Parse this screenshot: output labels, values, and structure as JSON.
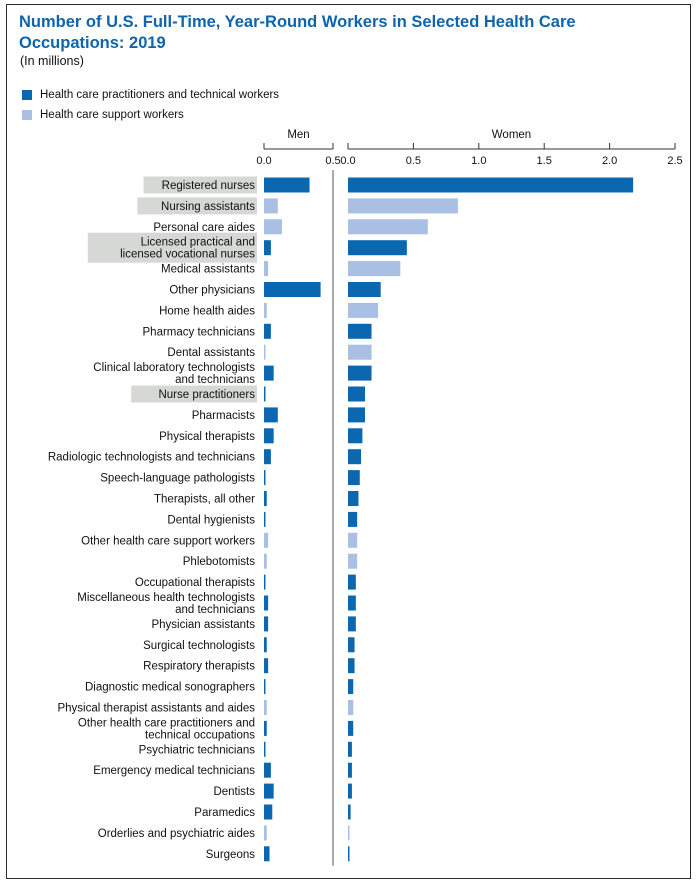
{
  "colors": {
    "practitioners": "#0c67b1",
    "support": "#a9bfe3",
    "title": "#0e64ad",
    "highlight": "#d6d8d5"
  },
  "chart_data": {
    "type": "bar",
    "title": "Number of U.S. Full-Time, Year-Round Workers in Selected Health Care Occupations: 2019",
    "subtitle": "(In millions)",
    "legend": [
      {
        "key": "practitioners",
        "label": "Health care practitioners and technical workers"
      },
      {
        "key": "support",
        "label": "Health care support workers"
      }
    ],
    "legend_position": "top-left",
    "panels": [
      {
        "key": "men",
        "title": "Men",
        "xlim": [
          0,
          0.5
        ],
        "ticks": [
          0.0,
          0.5
        ],
        "tick_labels": [
          "0.0",
          "0.5"
        ]
      },
      {
        "key": "women",
        "title": "Women",
        "xlim": [
          0,
          2.5
        ],
        "ticks": [
          0.0,
          0.5,
          1.0,
          1.5,
          2.0,
          2.5
        ],
        "tick_labels": [
          "0.0",
          "0.5",
          "1.0",
          "1.5",
          "2.0",
          "2.5"
        ]
      }
    ],
    "grid": false,
    "categories": [
      {
        "label": [
          "Registered nurses"
        ],
        "group": "practitioners",
        "highlight": true,
        "men": 0.33,
        "women": 2.18
      },
      {
        "label": [
          "Nursing assistants"
        ],
        "group": "support",
        "highlight": true,
        "men": 0.1,
        "women": 0.84
      },
      {
        "label": [
          "Personal care aides"
        ],
        "group": "support",
        "highlight": false,
        "men": 0.13,
        "women": 0.61
      },
      {
        "label": [
          "Licensed practical and",
          "licensed vocational nurses"
        ],
        "group": "practitioners",
        "highlight": true,
        "men": 0.05,
        "women": 0.45
      },
      {
        "label": [
          "Medical assistants"
        ],
        "group": "support",
        "highlight": false,
        "men": 0.03,
        "women": 0.4
      },
      {
        "label": [
          "Other physicians"
        ],
        "group": "practitioners",
        "highlight": false,
        "men": 0.41,
        "women": 0.25
      },
      {
        "label": [
          "Home health aides"
        ],
        "group": "support",
        "highlight": false,
        "men": 0.02,
        "women": 0.23
      },
      {
        "label": [
          "Pharmacy technicians"
        ],
        "group": "practitioners",
        "highlight": false,
        "men": 0.05,
        "women": 0.18
      },
      {
        "label": [
          "Dental assistants"
        ],
        "group": "support",
        "highlight": false,
        "men": 0.01,
        "women": 0.18
      },
      {
        "label": [
          "Clinical laboratory technologists",
          "and technicians"
        ],
        "group": "practitioners",
        "highlight": false,
        "men": 0.07,
        "women": 0.18
      },
      {
        "label": [
          "Nurse practitioners"
        ],
        "group": "practitioners",
        "highlight": true,
        "men": 0.01,
        "women": 0.13
      },
      {
        "label": [
          "Pharmacists"
        ],
        "group": "practitioners",
        "highlight": false,
        "men": 0.1,
        "women": 0.13
      },
      {
        "label": [
          "Physical therapists"
        ],
        "group": "practitioners",
        "highlight": false,
        "men": 0.07,
        "women": 0.11
      },
      {
        "label": [
          "Radiologic technologists and technicians"
        ],
        "group": "practitioners",
        "highlight": false,
        "men": 0.05,
        "women": 0.1
      },
      {
        "label": [
          "Speech-language pathologists"
        ],
        "group": "practitioners",
        "highlight": false,
        "men": 0.005,
        "women": 0.09
      },
      {
        "label": [
          "Therapists, all other"
        ],
        "group": "practitioners",
        "highlight": false,
        "men": 0.02,
        "women": 0.08
      },
      {
        "label": [
          "Dental hygienists"
        ],
        "group": "practitioners",
        "highlight": false,
        "men": 0.005,
        "women": 0.07
      },
      {
        "label": [
          "Other health care support workers"
        ],
        "group": "support",
        "highlight": false,
        "men": 0.03,
        "women": 0.07
      },
      {
        "label": [
          "Phlebotomists"
        ],
        "group": "support",
        "highlight": false,
        "men": 0.02,
        "women": 0.07
      },
      {
        "label": [
          "Occupational therapists"
        ],
        "group": "practitioners",
        "highlight": false,
        "men": 0.005,
        "women": 0.06
      },
      {
        "label": [
          "Miscellaneous health technologists",
          "and technicians"
        ],
        "group": "practitioners",
        "highlight": false,
        "men": 0.03,
        "women": 0.06
      },
      {
        "label": [
          "Physician assistants"
        ],
        "group": "practitioners",
        "highlight": false,
        "men": 0.03,
        "women": 0.06
      },
      {
        "label": [
          "Surgical technologists"
        ],
        "group": "practitioners",
        "highlight": false,
        "men": 0.02,
        "women": 0.05
      },
      {
        "label": [
          "Respiratory therapists"
        ],
        "group": "practitioners",
        "highlight": false,
        "men": 0.03,
        "women": 0.05
      },
      {
        "label": [
          "Diagnostic medical sonographers"
        ],
        "group": "practitioners",
        "highlight": false,
        "men": 0.01,
        "women": 0.04
      },
      {
        "label": [
          "Physical therapist assistants and aides"
        ],
        "group": "support",
        "highlight": false,
        "men": 0.02,
        "women": 0.04
      },
      {
        "label": [
          "Other health care practitioners and",
          "technical occupations"
        ],
        "group": "practitioners",
        "highlight": false,
        "men": 0.02,
        "women": 0.04
      },
      {
        "label": [
          "Psychiatric technicians"
        ],
        "group": "practitioners",
        "highlight": false,
        "men": 0.01,
        "women": 0.03
      },
      {
        "label": [
          "Emergency medical technicians"
        ],
        "group": "practitioners",
        "highlight": false,
        "men": 0.05,
        "women": 0.03
      },
      {
        "label": [
          "Dentists"
        ],
        "group": "practitioners",
        "highlight": false,
        "men": 0.07,
        "women": 0.03
      },
      {
        "label": [
          "Paramedics"
        ],
        "group": "practitioners",
        "highlight": false,
        "men": 0.06,
        "women": 0.02
      },
      {
        "label": [
          "Orderlies and psychiatric aides"
        ],
        "group": "support",
        "highlight": false,
        "men": 0.02,
        "women": 0.01
      },
      {
        "label": [
          "Surgeons"
        ],
        "group": "practitioners",
        "highlight": false,
        "men": 0.04,
        "women": 0.01
      }
    ]
  }
}
